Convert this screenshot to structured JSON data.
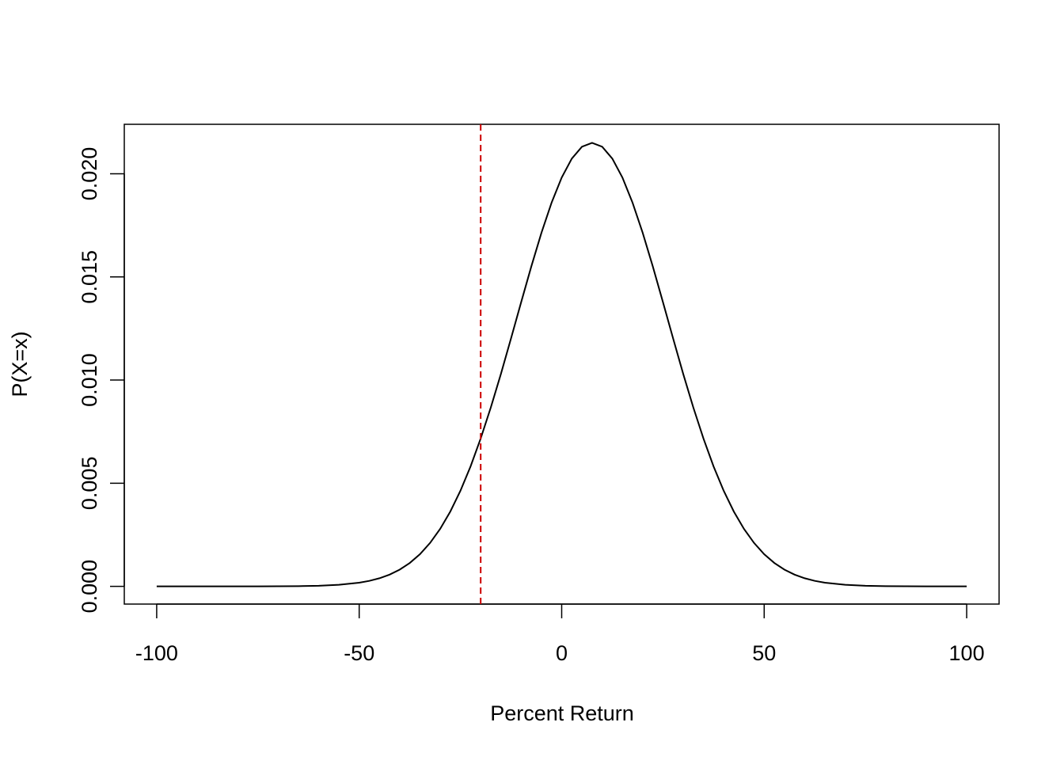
{
  "chart_data": {
    "type": "line",
    "x_label": "Percent Return",
    "y_label": "P(X=x)",
    "x": [
      -100,
      -95,
      -90,
      -85,
      -80,
      -75,
      -70,
      -65,
      -60,
      -55,
      -50,
      -47.5,
      -45,
      -42.5,
      -40,
      -37.5,
      -35,
      -32.5,
      -30,
      -27.5,
      -25,
      -22.5,
      -20,
      -17.5,
      -15,
      -12.5,
      -10,
      -7.5,
      -5,
      -2.5,
      0,
      2.5,
      5,
      7.5,
      10,
      12.5,
      15,
      17.5,
      20,
      22.5,
      25,
      27.5,
      30,
      32.5,
      35,
      37.5,
      40,
      42.5,
      45,
      47.5,
      50,
      52.5,
      55,
      57.5,
      60,
      62.5,
      65,
      70,
      75,
      80,
      85,
      90,
      95,
      100
    ],
    "series": [
      {
        "color": "#000000",
        "values": [
          0,
          0,
          0,
          1e-07,
          3e-07,
          1.1e-06,
          3.5e-06,
          1.03e-05,
          2.86e-05,
          7.35e-05,
          0.000177,
          0.000265,
          0.000392,
          0.000568,
          0.000811,
          0.001134,
          0.001558,
          0.002103,
          0.002788,
          0.003626,
          0.004634,
          0.005815,
          0.007168,
          0.008673,
          0.010303,
          0.012028,
          0.013781,
          0.015508,
          0.01714,
          0.018598,
          0.019818,
          0.020738,
          0.021312,
          0.0215,
          0.021312,
          0.020738,
          0.019818,
          0.018598,
          0.01714,
          0.015508,
          0.013781,
          0.012028,
          0.010303,
          0.008673,
          0.007168,
          0.005815,
          0.004634,
          0.003626,
          0.002788,
          0.002103,
          0.001558,
          0.001134,
          0.000811,
          0.000568,
          0.000392,
          0.000265,
          0.000177,
          7.35e-05,
          2.86e-05,
          1.03e-05,
          3.5e-06,
          1.1e-06,
          3e-07,
          1e-07
        ]
      }
    ],
    "vline": {
      "x": -20,
      "color": "#cc0000",
      "dash": true
    },
    "xlim": [
      -108,
      108
    ],
    "ylim": [
      -0.00086,
      0.0224
    ],
    "xticks": [
      -100,
      -50,
      0,
      50,
      100
    ],
    "yticks": [
      {
        "value": 0,
        "label": "0.000"
      },
      {
        "value": 0.005,
        "label": "0.005"
      },
      {
        "value": 0.01,
        "label": "0.010"
      },
      {
        "value": 0.015,
        "label": "0.015"
      },
      {
        "value": 0.02,
        "label": "0.020"
      }
    ]
  }
}
